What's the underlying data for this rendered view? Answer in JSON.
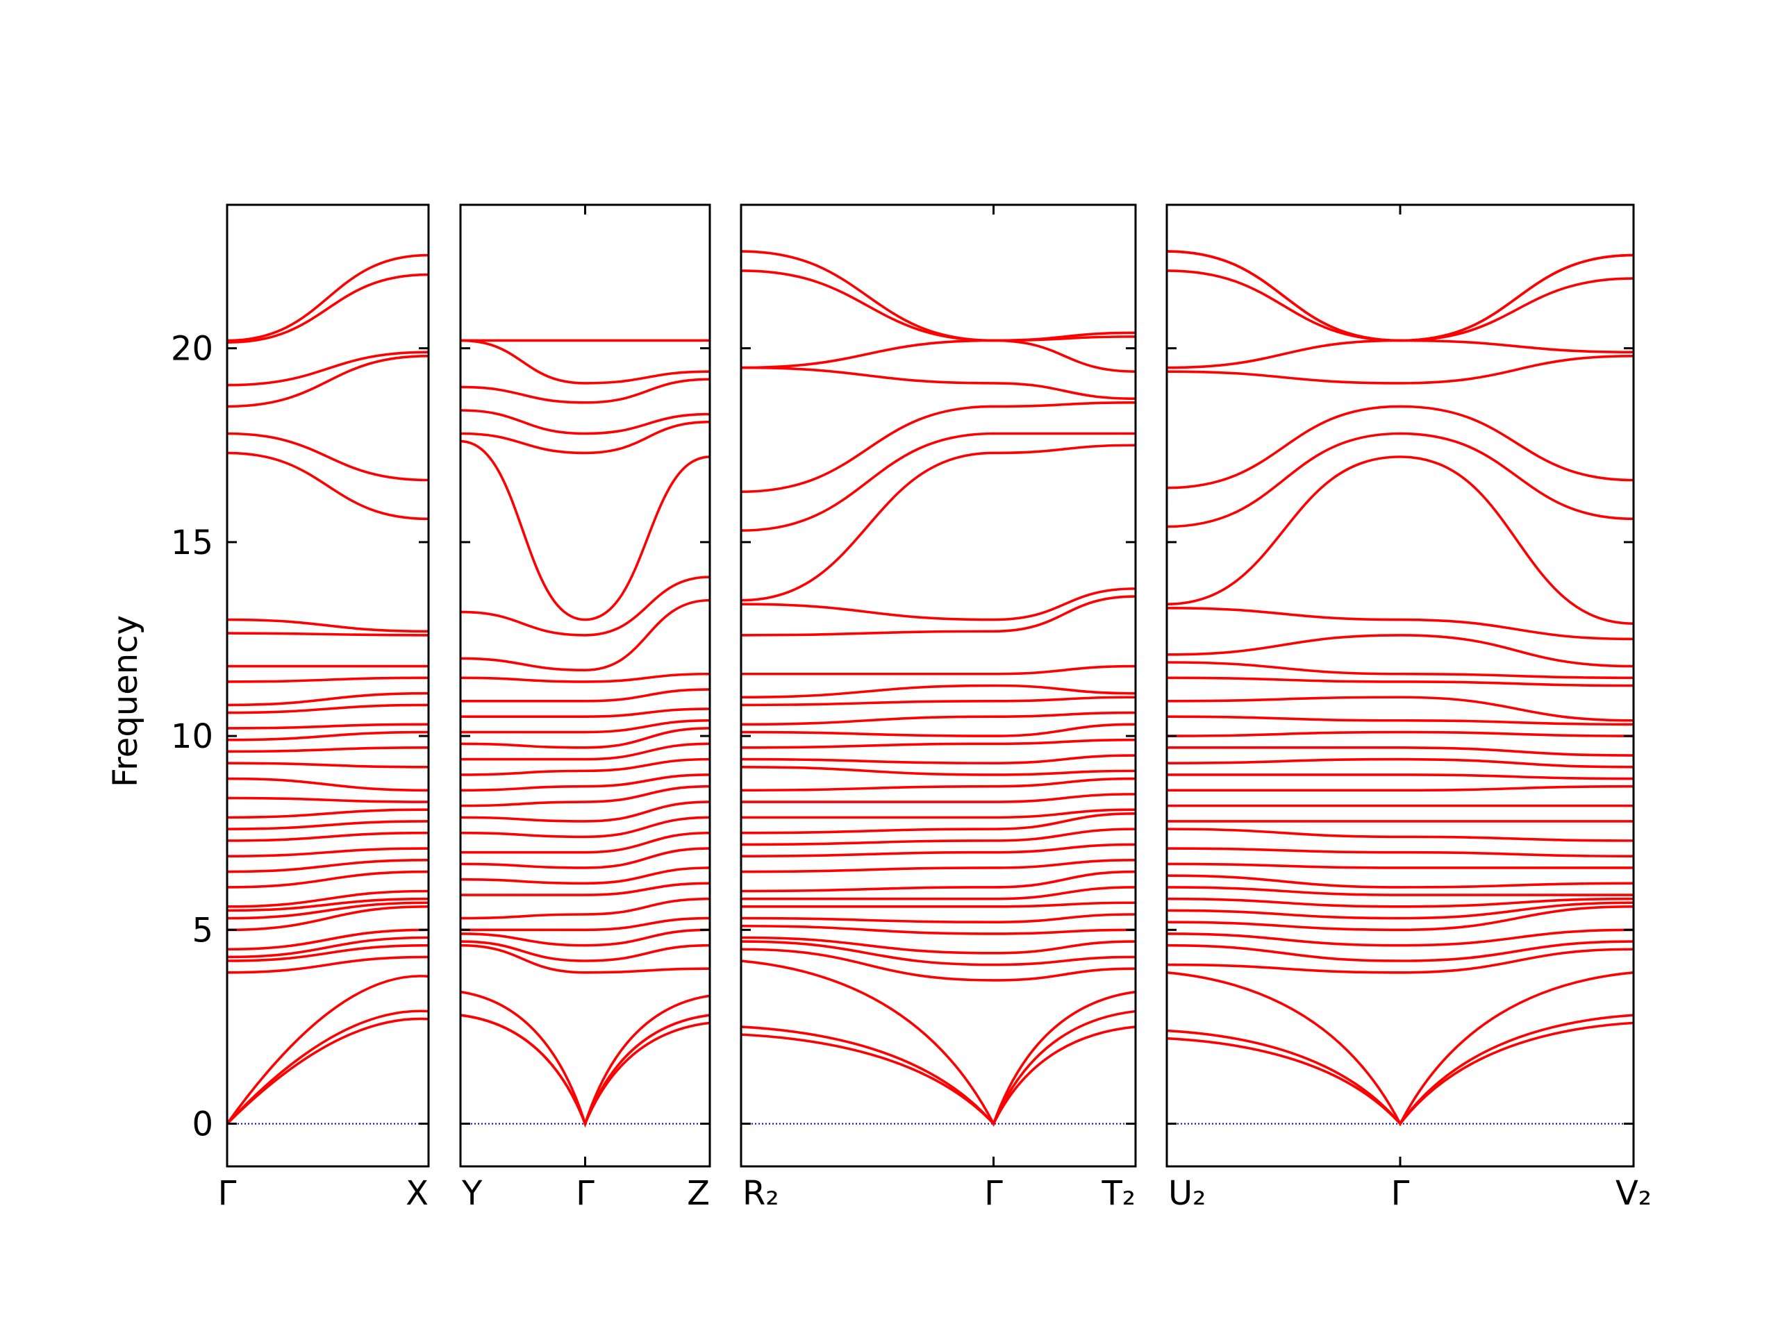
{
  "chart_data": {
    "type": "line",
    "ylabel": "Frequency",
    "ylim": [
      -1.1,
      23.7
    ],
    "yticks": [
      0,
      5,
      10,
      15,
      20
    ],
    "line_color": "#ff0000",
    "zero_line_color": "#0000cc",
    "grid": false,
    "panels": [
      {
        "segments": [
          {
            "k_labels": [
              "Γ",
              "X"
            ],
            "gamma_at": "start"
          }
        ],
        "bands_start": [
          0,
          0,
          0,
          3.9,
          4.2,
          4.3,
          4.5,
          5.0,
          5.3,
          5.5,
          5.6,
          6.1,
          6.5,
          6.9,
          7.3,
          7.6,
          7.9,
          8.4,
          8.9,
          9.3,
          9.6,
          9.9,
          10.2,
          10.6,
          10.8,
          11.4,
          11.8,
          12.65,
          13.0,
          17.3,
          17.8,
          18.5,
          19.05,
          20.15,
          20.2
        ],
        "bands_end": [
          2.7,
          2.9,
          3.8,
          4.3,
          4.6,
          4.8,
          5.0,
          5.6,
          5.7,
          5.8,
          6.0,
          6.5,
          6.8,
          7.1,
          7.5,
          7.8,
          8.1,
          8.3,
          8.6,
          9.2,
          9.7,
          10.1,
          10.3,
          10.8,
          11.1,
          11.5,
          11.8,
          12.6,
          12.7,
          15.6,
          16.6,
          19.8,
          19.9,
          21.9,
          22.4
        ]
      },
      {
        "segments": [
          {
            "k_labels": [
              "Y",
              "Γ",
              "Z"
            ],
            "gamma_at": "middle"
          }
        ],
        "bands_start": [
          2.8,
          2.8,
          3.4,
          4.6,
          4.7,
          4.9,
          5.0,
          5.3,
          5.9,
          6.3,
          6.7,
          7.0,
          7.5,
          7.9,
          8.2,
          8.6,
          9.0,
          9.4,
          9.8,
          10.1,
          10.5,
          10.9,
          11.5,
          12.0,
          13.2,
          17.6,
          17.8,
          18.4,
          19.0,
          20.2,
          20.2
        ],
        "bands_mid": [
          0,
          0,
          0,
          3.9,
          4.2,
          4.6,
          5.0,
          5.4,
          5.9,
          6.2,
          6.6,
          7.0,
          7.4,
          7.8,
          8.3,
          8.7,
          9.1,
          9.4,
          9.7,
          10.1,
          10.5,
          10.9,
          11.4,
          11.7,
          12.6,
          13.0,
          17.3,
          17.8,
          18.6,
          19.1,
          20.2
        ],
        "bands_end": [
          2.6,
          2.8,
          3.3,
          4.0,
          4.6,
          5.0,
          5.3,
          5.8,
          6.2,
          6.6,
          7.1,
          7.5,
          7.9,
          8.3,
          8.7,
          9.0,
          9.4,
          9.8,
          10.2,
          10.4,
          10.7,
          11.2,
          11.6,
          13.5,
          14.1,
          17.2,
          18.1,
          18.3,
          19.2,
          19.4,
          20.2
        ]
      },
      {
        "segments": [
          {
            "k_labels": [
              "R₂",
              "Γ",
              "T₂"
            ],
            "gamma_at": "two-thirds"
          }
        ],
        "bands_start": [
          2.3,
          2.5,
          4.2,
          4.5,
          4.7,
          4.8,
          5.1,
          5.3,
          5.6,
          5.8,
          6.0,
          6.5,
          6.9,
          7.2,
          7.5,
          7.9,
          8.3,
          8.6,
          9.2,
          9.4,
          9.7,
          10.1,
          10.3,
          10.8,
          11.0,
          11.6,
          12.6,
          13.4,
          13.5,
          15.3,
          16.3,
          19.5,
          19.5,
          22.0,
          22.5
        ],
        "bands_mid": [
          0,
          0,
          0,
          3.7,
          4.1,
          4.4,
          4.9,
          5.2,
          5.6,
          5.8,
          6.1,
          6.6,
          7.0,
          7.3,
          7.6,
          7.9,
          8.3,
          8.7,
          9.0,
          9.3,
          9.8,
          10.0,
          10.5,
          10.9,
          11.3,
          11.6,
          12.7,
          13.0,
          17.3,
          17.8,
          18.5,
          19.1,
          20.2,
          20.2,
          20.2
        ],
        "bands_end": [
          2.5,
          2.9,
          3.4,
          4.0,
          4.3,
          4.7,
          5.0,
          5.4,
          5.7,
          6.1,
          6.5,
          6.8,
          7.2,
          7.6,
          8.0,
          8.1,
          8.5,
          8.9,
          9.1,
          9.5,
          9.9,
          10.3,
          10.6,
          11.0,
          11.1,
          11.8,
          13.6,
          13.8,
          17.5,
          17.8,
          18.6,
          18.7,
          19.4,
          20.3,
          20.4
        ]
      },
      {
        "segments": [
          {
            "k_labels": [
              "U₂",
              "Γ",
              "V₂"
            ],
            "gamma_at": "middle"
          }
        ],
        "bands_start": [
          2.2,
          2.4,
          3.9,
          4.1,
          4.6,
          4.9,
          5.2,
          5.5,
          5.8,
          6.1,
          6.4,
          6.7,
          7.1,
          7.6,
          7.8,
          8.2,
          8.6,
          9.0,
          9.3,
          9.7,
          10.0,
          10.5,
          10.9,
          11.5,
          11.9,
          12.1,
          13.3,
          13.4,
          15.4,
          16.4,
          19.4,
          19.5,
          22.0,
          22.5,
          22.5
        ],
        "bands_mid": [
          0,
          0,
          0,
          3.9,
          4.2,
          4.6,
          5.0,
          5.3,
          5.6,
          5.9,
          6.1,
          6.6,
          7.0,
          7.4,
          7.8,
          8.2,
          8.6,
          9.0,
          9.4,
          9.7,
          10.1,
          10.4,
          11.0,
          11.4,
          11.6,
          12.6,
          13.0,
          17.2,
          17.8,
          18.5,
          19.1,
          20.2,
          20.2,
          20.2,
          20.2
        ],
        "bands_end": [
          2.6,
          2.8,
          3.9,
          4.5,
          4.7,
          5.0,
          5.6,
          5.7,
          5.8,
          5.9,
          6.2,
          6.6,
          6.9,
          7.3,
          7.8,
          8.2,
          8.7,
          8.9,
          9.2,
          9.5,
          10.0,
          10.3,
          10.4,
          11.3,
          11.5,
          11.8,
          12.5,
          12.9,
          15.6,
          16.6,
          19.8,
          19.9,
          21.8,
          22.4,
          22.4
        ]
      }
    ]
  }
}
